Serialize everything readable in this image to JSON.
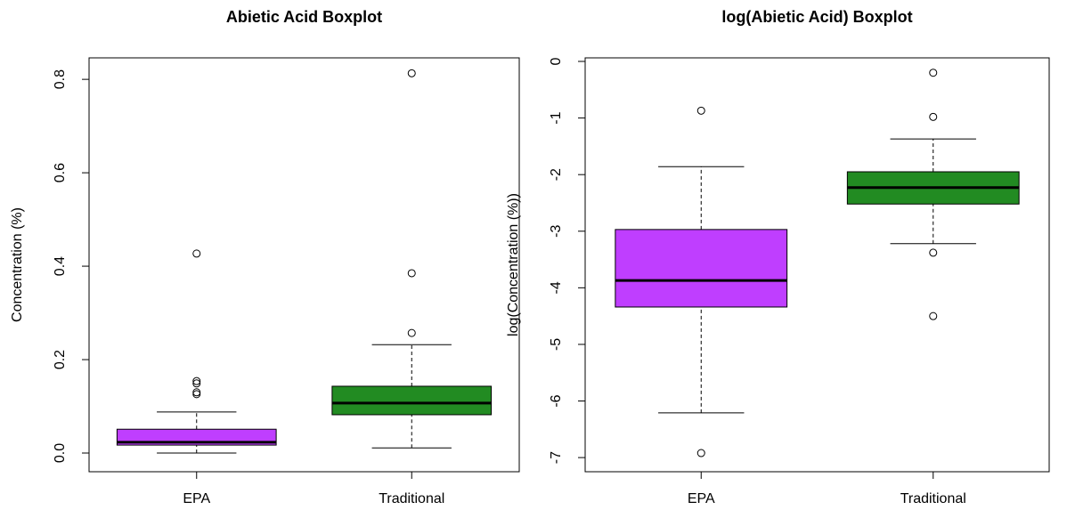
{
  "chart_data": [
    {
      "type": "box",
      "title": "Abietic Acid Boxplot",
      "ylabel": "Concentration (%)",
      "categories": [
        "EPA",
        "Traditional"
      ],
      "colors": [
        "#bf3eff",
        "#228b22"
      ],
      "min": [
        0.0,
        0.011
      ],
      "q1": [
        0.017,
        0.082
      ],
      "median": [
        0.023,
        0.107
      ],
      "q3": [
        0.051,
        0.143
      ],
      "max": [
        0.088,
        0.232
      ],
      "outliers": [
        [
          0.126,
          0.13,
          0.149,
          0.154,
          0.427
        ],
        [
          0.257,
          0.385,
          0.813
        ]
      ],
      "ylim": [
        -0.04,
        0.846
      ],
      "yticks": [
        {
          "value": 0,
          "label": "0.0"
        },
        0.2,
        0.4,
        0.6,
        0.8
      ]
    },
    {
      "type": "box",
      "title": "log(Abietic Acid) Boxplot",
      "ylabel": "log(Concentration (%))",
      "categories": [
        "EPA",
        "Traditional"
      ],
      "colors": [
        "#bf3eff",
        "#228b22"
      ],
      "min": [
        -6.21,
        -3.22
      ],
      "q1": [
        -4.34,
        -2.52
      ],
      "median": [
        -3.87,
        -2.23
      ],
      "q3": [
        -2.97,
        -1.95
      ],
      "max": [
        -1.86,
        -1.37
      ],
      "outliers": [
        [
          -6.92,
          -0.87
        ],
        [
          -4.5,
          -3.38,
          -0.98,
          -0.2
        ]
      ],
      "ylim": [
        -7.25,
        0.063
      ],
      "yticks": [
        0,
        -1,
        -2,
        -3,
        -4,
        -5,
        -6,
        -7
      ]
    }
  ]
}
